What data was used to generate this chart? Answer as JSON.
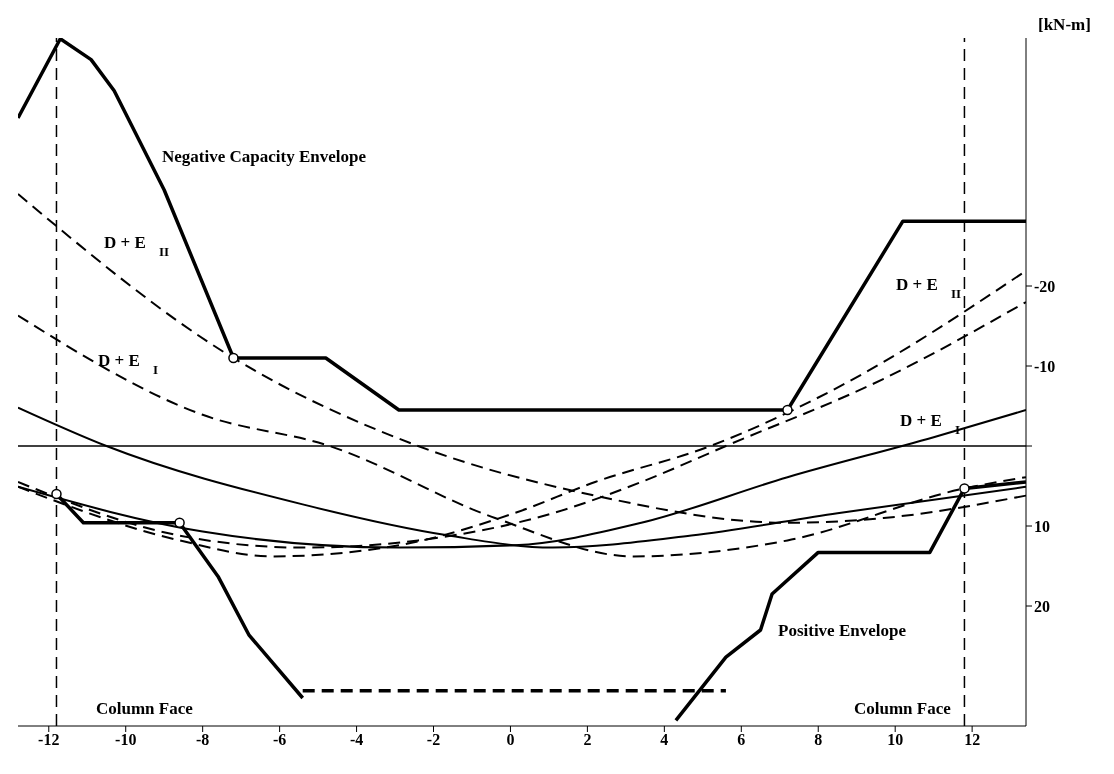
{
  "chart_data": {
    "type": "line",
    "ylabel": "[kN-m]",
    "xlim": [
      -12.8,
      13.4
    ],
    "xticks": [
      -12,
      -10,
      -8,
      -6,
      -4,
      -2,
      0,
      2,
      4,
      6,
      8,
      10,
      12
    ],
    "ylim": [
      35,
      -51
    ],
    "yticks": [
      -20,
      -10,
      {
        "value": 0,
        "label": null
      },
      10,
      20
    ],
    "grid": false,
    "legend": false,
    "series": [
      {
        "name": "Negative Capacity Envelope",
        "color": "#000000",
        "line_style": "solid",
        "x": [
          -12.8,
          -11.7,
          -10.9,
          -10.3,
          -9.0,
          -7.2,
          -4.8,
          -2.9,
          7.2,
          10.2,
          11.7,
          13.4
        ],
        "values": [
          -41.0,
          -50.9,
          -48.3,
          -44.4,
          -32.0,
          -11.0,
          -11.0,
          -4.5,
          -4.5,
          -28.1,
          -28.1,
          -28.1
        ]
      },
      {
        "name": "Positive Envelope",
        "color": "#000000",
        "line_style": "solid",
        "x": [
          -11.8,
          -11.1,
          -8.6,
          -7.6,
          -6.8,
          -5.4,
          0,
          4.3,
          5.6,
          6.5,
          6.8,
          8.0,
          10.9,
          11.8,
          13.4
        ],
        "values": [
          6.0,
          9.6,
          9.6,
          16.3,
          23.6,
          31.5,
          null,
          34.3,
          26.4,
          23.0,
          18.5,
          13.3,
          13.3,
          5.3,
          4.5
        ]
      },
      {
        "color": "#000000",
        "line_style": "dashed",
        "x": [
          -5.4,
          5.6
        ],
        "values": [
          30.6,
          30.6
        ]
      },
      {
        "name": "D + E⃖$_{II}$",
        "color": "#000000",
        "line_style": "dashed",
        "x": [
          -12.8,
          -7.2,
          -2.4,
          2.2,
          7.2,
          9.7,
          13.4
        ],
        "values": [
          -31.5,
          -11.0,
          0,
          6.2,
          9.6,
          9.0,
          6.2
        ]
      },
      {
        "name": "D + E⃖$_{I}$",
        "color": "#000000",
        "line_style": "dashed",
        "x": [
          -12.8,
          -8.0,
          -4.7,
          -0.4,
          3.2,
          7.2,
          11.8,
          13.4
        ],
        "values": [
          -16.3,
          -3.9,
          0,
          9.0,
          13.8,
          11.8,
          5.3,
          3.9
        ]
      },
      {
        "name": "D + E⃗$_{II}$",
        "color": "#000000",
        "line_style": "dashed",
        "x": [
          -12.8,
          -8.6,
          -6.2,
          -2.9,
          0.1,
          2.2,
          5.2,
          8.5,
          13.4
        ],
        "values": [
          5.1,
          11.8,
          13.8,
          12.4,
          8.4,
          4.5,
          0,
          -7.3,
          -21.9
        ]
      },
      {
        "name": "D + E⃗$_{I}$",
        "color": "#000000",
        "line_style": "dashed",
        "x": [
          -12.8,
          -8.6,
          -5.4,
          -2.4,
          1.1,
          3.4,
          5.6,
          9.7,
          13.4
        ],
        "values": [
          4.5,
          11.2,
          12.7,
          11.8,
          8.4,
          4.5,
          0,
          -8.4,
          -18.0
        ]
      },
      {
        "color": "#000000",
        "line_style": "solid",
        "x": [
          -12.8,
          -10.5,
          -5.4,
          -1.6,
          1.1,
          4.7,
          8.5,
          13.4
        ],
        "values": [
          -4.8,
          0,
          7.3,
          11.2,
          12.7,
          11.2,
          8.4,
          5.1
        ]
      },
      {
        "color": "#000000",
        "line_style": "solid",
        "x": [
          -12.8,
          -8.0,
          -2.9,
          0.1,
          3.4,
          7.2,
          11.0,
          13.4
        ],
        "values": [
          5.1,
          10.7,
          12.7,
          12.4,
          9.6,
          3.9,
          -1.1,
          -4.5
        ]
      },
      {
        "type": "scatter",
        "color": "#000000",
        "marker": "circle",
        "x": [
          -7.2,
          7.2,
          -11.8,
          -8.6,
          11.8
        ],
        "values": [
          -11.0,
          -4.5,
          6.0,
          9.6,
          5.3
        ]
      }
    ],
    "ref_lines": [
      {
        "axis": "x",
        "value": -11.8,
        "line_style": "dashed",
        "color": "#000000"
      },
      {
        "axis": "x",
        "value": 11.8,
        "line_style": "dashed",
        "color": "#000000"
      },
      {
        "axis": "y",
        "value": 0,
        "line_style": "solid",
        "color": "#000000"
      }
    ],
    "annotations": [
      "Column Face",
      "Column Face"
    ]
  }
}
